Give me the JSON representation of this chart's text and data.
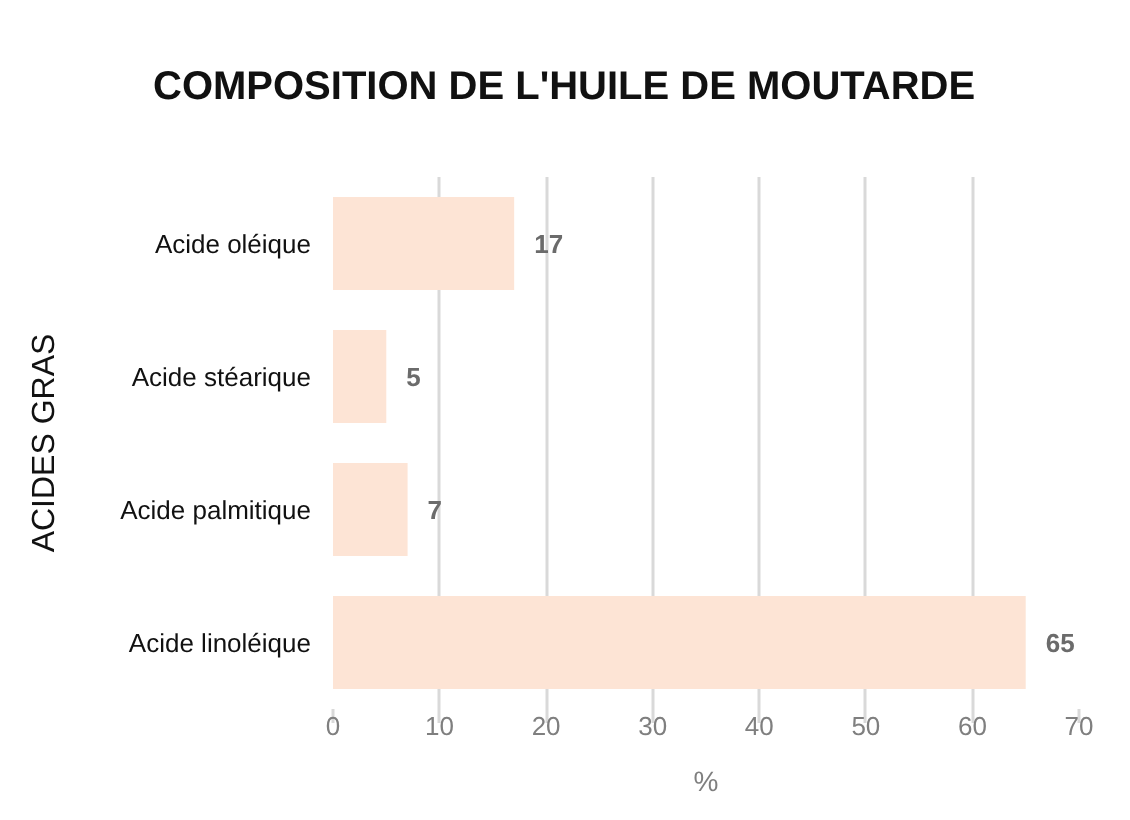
{
  "chart_data": {
    "type": "bar",
    "orientation": "horizontal",
    "title": "COMPOSITION DE L'HUILE DE MOUTARDE",
    "xlabel": "%",
    "ylabel": "ACIDES GRAS",
    "categories": [
      "Acide oléique",
      "Acide stéarique",
      "Acide palmitique",
      "Acide linoléique"
    ],
    "values": [
      17,
      5,
      7,
      65
    ],
    "color": "#fde4d5",
    "xlim": [
      0,
      70
    ],
    "xticks": [
      0,
      10,
      20,
      30,
      40,
      50,
      60,
      70
    ],
    "grid": "x",
    "data_labels": true
  }
}
